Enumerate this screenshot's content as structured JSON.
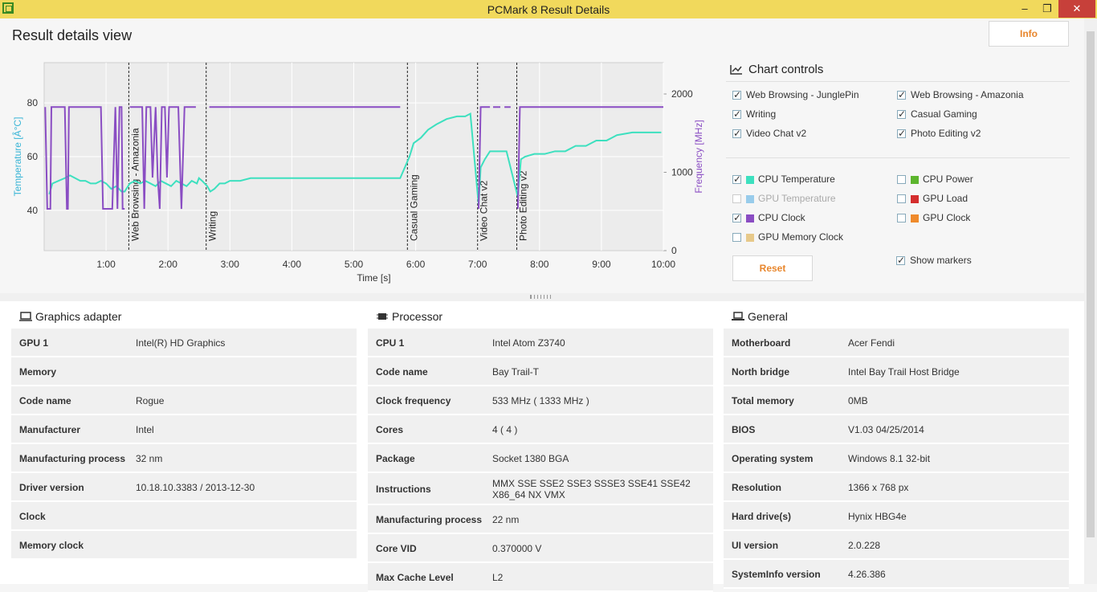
{
  "window": {
    "title": "PCMark 8 Result Details",
    "min": "–",
    "max": "❐",
    "close": "✕"
  },
  "header": {
    "title": "Result details view",
    "info_label": "Info"
  },
  "chart_data": {
    "type": "line",
    "xlabel": "Time [s]",
    "ylabel_left": "Temperature [Â°C]",
    "ylabel_right": "Frequency [MHz]",
    "x_ticks": [
      "1:00",
      "2:00",
      "3:00",
      "4:00",
      "5:00",
      "6:00",
      "7:00",
      "8:00",
      "9:00",
      "10:00"
    ],
    "x_range_s": [
      0,
      600
    ],
    "y_left_ticks": [
      40,
      60,
      80
    ],
    "y_left_range": [
      25,
      95
    ],
    "y_right_ticks": [
      0,
      1000,
      2000
    ],
    "y_right_range": [
      0,
      2400
    ],
    "grid": true,
    "markers": [
      {
        "label": "Web Browsing - Amazonia",
        "t": 82
      },
      {
        "label": "Writing",
        "t": 157
      },
      {
        "label": "Casual Gaming",
        "t": 352
      },
      {
        "label": "Video Chat v2",
        "t": 420
      },
      {
        "label": "Photo Editing v2",
        "t": 458
      }
    ],
    "series": [
      {
        "name": "CPU Temperature",
        "color": "#3de0bf",
        "points": [
          [
            5,
            46
          ],
          [
            8,
            50
          ],
          [
            14,
            51
          ],
          [
            20,
            52
          ],
          [
            25,
            53
          ],
          [
            30,
            52
          ],
          [
            35,
            51
          ],
          [
            40,
            51
          ],
          [
            45,
            50
          ],
          [
            50,
            50
          ],
          [
            55,
            51
          ],
          [
            60,
            50
          ],
          [
            65,
            48
          ],
          [
            70,
            49
          ],
          [
            75,
            47
          ],
          [
            78,
            47
          ],
          [
            83,
            50
          ],
          [
            88,
            51
          ],
          [
            93,
            50
          ],
          [
            98,
            51
          ],
          [
            103,
            50
          ],
          [
            108,
            49
          ],
          [
            113,
            51
          ],
          [
            118,
            50
          ],
          [
            123,
            49
          ],
          [
            128,
            51
          ],
          [
            133,
            50
          ],
          [
            138,
            49
          ],
          [
            143,
            51
          ],
          [
            148,
            50
          ],
          [
            150,
            52
          ],
          [
            153,
            51
          ],
          [
            158,
            49
          ],
          [
            161,
            47
          ],
          [
            165,
            48
          ],
          [
            170,
            50
          ],
          [
            175,
            50
          ],
          [
            180,
            51
          ],
          [
            190,
            51
          ],
          [
            200,
            52
          ],
          [
            220,
            52
          ],
          [
            250,
            52
          ],
          [
            280,
            52
          ],
          [
            300,
            52
          ],
          [
            320,
            52
          ],
          [
            345,
            52
          ],
          [
            354,
            60
          ],
          [
            358,
            65
          ],
          [
            365,
            67
          ],
          [
            372,
            70
          ],
          [
            380,
            72
          ],
          [
            390,
            74
          ],
          [
            400,
            75
          ],
          [
            408,
            75
          ],
          [
            413,
            76
          ],
          [
            421,
            42
          ],
          [
            423,
            56
          ],
          [
            427,
            59
          ],
          [
            432,
            62
          ],
          [
            440,
            62
          ],
          [
            448,
            62
          ],
          [
            459,
            45
          ],
          [
            462,
            59
          ],
          [
            466,
            60
          ],
          [
            475,
            61
          ],
          [
            485,
            61
          ],
          [
            495,
            62
          ],
          [
            505,
            62
          ],
          [
            515,
            64
          ],
          [
            525,
            64
          ],
          [
            535,
            66
          ],
          [
            545,
            66
          ],
          [
            555,
            68
          ],
          [
            570,
            69
          ],
          [
            585,
            69
          ],
          [
            598,
            69
          ]
        ]
      },
      {
        "name": "CPU Clock",
        "color": "#8a4dc3",
        "segments": [
          [
            [
              1,
              1833
            ],
            [
              3,
              533
            ],
            [
              6,
              533
            ],
            [
              7,
              1833
            ],
            [
              20,
              1833
            ],
            [
              22,
              533
            ],
            [
              23,
              533
            ],
            [
              24,
              1833
            ],
            [
              55,
              1833
            ],
            [
              57,
              533
            ],
            [
              66,
              533
            ],
            [
              69,
              1833
            ],
            [
              71,
              533
            ],
            [
              73,
              1833
            ],
            [
              75,
              1833
            ],
            [
              76,
              533
            ],
            [
              78,
              533
            ]
          ],
          [
            [
              83,
              1833
            ],
            [
              95,
              1833
            ],
            [
              97,
              533
            ],
            [
              99,
              1833
            ],
            [
              103,
              1833
            ],
            [
              105,
              933
            ],
            [
              108,
              1833
            ],
            [
              110,
              933
            ],
            [
              112,
              533
            ],
            [
              114,
              1833
            ],
            [
              117,
              1833
            ],
            [
              119,
              933
            ],
            [
              121,
              1833
            ],
            [
              130,
              1833
            ],
            [
              133,
              533
            ],
            [
              136,
              1833
            ],
            [
              140,
              1833
            ],
            [
              142,
              1833
            ],
            [
              145,
              1833
            ],
            [
              147,
              1833
            ]
          ],
          [
            [
              160,
              1833
            ],
            [
              175,
              1833
            ],
            [
              250,
              1833
            ],
            [
              300,
              1833
            ],
            [
              345,
              1833
            ]
          ],
          [
            [
              421,
              533
            ],
            [
              423,
              1833
            ],
            [
              432,
              1833
            ]
          ],
          [
            [
              435,
              1833
            ],
            [
              442,
              1833
            ]
          ],
          [
            [
              446,
              1833
            ],
            [
              452,
              1833
            ]
          ],
          [
            [
              459,
              533
            ],
            [
              461,
              1833
            ],
            [
              480,
              1833
            ],
            [
              600,
              1833
            ]
          ]
        ]
      }
    ]
  },
  "chart_controls": {
    "title": "Chart controls",
    "tests": [
      {
        "label": "Web Browsing - JunglePin",
        "checked": true
      },
      {
        "label": "Web Browsing - Amazonia",
        "checked": true
      },
      {
        "label": "Writing",
        "checked": true
      },
      {
        "label": "Casual Gaming",
        "checked": true
      },
      {
        "label": "Video Chat v2",
        "checked": true
      },
      {
        "label": "Photo Editing v2",
        "checked": true
      }
    ],
    "metrics": [
      {
        "label": "CPU Temperature",
        "checked": true,
        "color": "#3de0bf"
      },
      {
        "label": "CPU Power",
        "checked": false,
        "color": "#5cb52d"
      },
      {
        "label": "GPU Temperature",
        "checked": false,
        "color": "#3aa2e0",
        "disabled": true
      },
      {
        "label": "GPU Load",
        "checked": false,
        "color": "#d42d2d"
      },
      {
        "label": "CPU Clock",
        "checked": true,
        "color": "#8a4dc3"
      },
      {
        "label": "GPU Clock",
        "checked": false,
        "color": "#ef8a2b"
      },
      {
        "label": "GPU Memory Clock",
        "checked": false,
        "color": "#e7c98a"
      }
    ],
    "show_markers": {
      "label": "Show markers",
      "checked": true
    },
    "reset_label": "Reset"
  },
  "graphics": {
    "title": "Graphics adapter",
    "rows": [
      {
        "k": "GPU 1",
        "v": "Intel(R) HD Graphics"
      },
      {
        "k": "Memory",
        "v": ""
      },
      {
        "k": "Code name",
        "v": "Rogue"
      },
      {
        "k": "Manufacturer",
        "v": "Intel"
      },
      {
        "k": "Manufacturing process",
        "v": "32 nm"
      },
      {
        "k": "Driver version",
        "v": "10.18.10.3383 / 2013-12-30"
      },
      {
        "k": "Clock",
        "v": ""
      },
      {
        "k": "Memory clock",
        "v": ""
      }
    ]
  },
  "processor": {
    "title": "Processor",
    "rows": [
      {
        "k": "CPU 1",
        "v": "Intel Atom Z3740"
      },
      {
        "k": "Code name",
        "v": "Bay Trail-T"
      },
      {
        "k": "Clock frequency",
        "v": "533 MHz ( 1333 MHz )"
      },
      {
        "k": "Cores",
        "v": "4 ( 4 )"
      },
      {
        "k": "Package",
        "v": "Socket 1380 BGA"
      },
      {
        "k": "Instructions",
        "v": "MMX SSE SSE2 SSE3 SSSE3 SSE41 SSE42 X86_64 NX VMX"
      },
      {
        "k": "Manufacturing process",
        "v": "22 nm"
      },
      {
        "k": "Core VID",
        "v": "0.370000 V"
      },
      {
        "k": "Max Cache Level",
        "v": "L2"
      }
    ]
  },
  "general": {
    "title": "General",
    "rows": [
      {
        "k": "Motherboard",
        "v": "Acer Fendi"
      },
      {
        "k": "North bridge",
        "v": "Intel Bay Trail Host Bridge"
      },
      {
        "k": "Total memory",
        "v": "0MB"
      },
      {
        "k": "BIOS",
        "v": "V1.03 04/25/2014"
      },
      {
        "k": "Operating system",
        "v": "Windows 8.1 32-bit"
      },
      {
        "k": "Resolution",
        "v": "1366 x 768 px"
      },
      {
        "k": "Hard drive(s)",
        "v": "Hynix HBG4e"
      },
      {
        "k": "UI version",
        "v": "2.0.228"
      },
      {
        "k": "SystemInfo version",
        "v": "4.26.386"
      }
    ]
  }
}
